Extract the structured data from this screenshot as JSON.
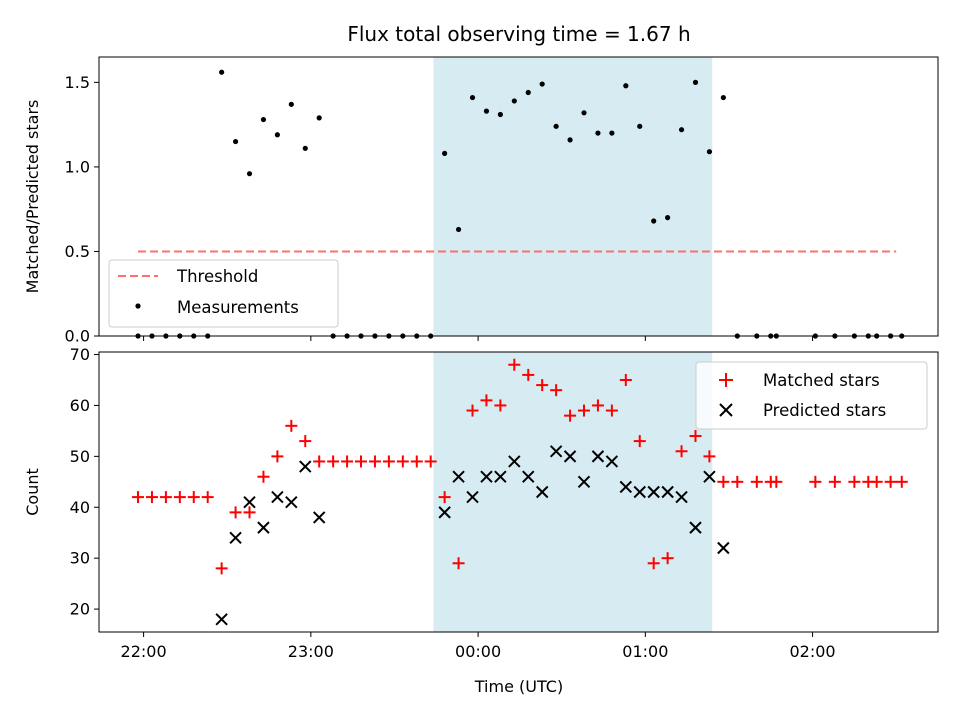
{
  "chart_data": {
    "type": "scatter",
    "title": "Flux total observing time = 1.67 h",
    "xlabel": "Time (UTC)",
    "x_ticks": [
      "22:00",
      "23:00",
      "00:00",
      "01:00",
      "02:00"
    ],
    "x_tick_values": [
      0,
      60,
      120,
      180,
      240
    ],
    "x_unit": "minutes after 22:00 UTC",
    "xlim": [
      -16,
      285
    ],
    "highlight_span": [
      104,
      204
    ],
    "highlight_color": "#add8e6",
    "top": {
      "ylabel": "Matched/Predicted stars",
      "ylim": [
        0,
        1.65
      ],
      "y_ticks": [
        "0.0",
        "0.5",
        "1.0",
        "1.5"
      ],
      "y_tick_values": [
        0,
        0.5,
        1.0,
        1.5
      ],
      "legend": {
        "placement": "lower-left",
        "entries": [
          "Threshold",
          "Measurements"
        ]
      },
      "threshold": {
        "name": "Threshold",
        "value": 0.5,
        "x_range": [
          -2,
          270
        ],
        "color": "#ff6f6f"
      },
      "measurements": {
        "name": "Measurements",
        "color": "#000000",
        "points": [
          [
            -2,
            0
          ],
          [
            3,
            0
          ],
          [
            8,
            0
          ],
          [
            13,
            0
          ],
          [
            18,
            0
          ],
          [
            23,
            0
          ],
          [
            28,
            1.56
          ],
          [
            33,
            1.15
          ],
          [
            38,
            0.96
          ],
          [
            43,
            1.28
          ],
          [
            48,
            1.19
          ],
          [
            53,
            1.37
          ],
          [
            58,
            1.11
          ],
          [
            63,
            1.29
          ],
          [
            68,
            0
          ],
          [
            73,
            0
          ],
          [
            78,
            0
          ],
          [
            83,
            0
          ],
          [
            88,
            0
          ],
          [
            93,
            0
          ],
          [
            98,
            0
          ],
          [
            103,
            0
          ],
          [
            108,
            1.08
          ],
          [
            113,
            0.63
          ],
          [
            118,
            1.41
          ],
          [
            123,
            1.33
          ],
          [
            128,
            1.31
          ],
          [
            133,
            1.39
          ],
          [
            138,
            1.44
          ],
          [
            143,
            1.49
          ],
          [
            148,
            1.24
          ],
          [
            153,
            1.16
          ],
          [
            158,
            1.32
          ],
          [
            163,
            1.2
          ],
          [
            168,
            1.2
          ],
          [
            173,
            1.48
          ],
          [
            178,
            1.24
          ],
          [
            183,
            0.68
          ],
          [
            188,
            0.7
          ],
          [
            193,
            1.22
          ],
          [
            198,
            1.5
          ],
          [
            203,
            1.09
          ],
          [
            208,
            1.41
          ],
          [
            213,
            0
          ],
          [
            220,
            0
          ],
          [
            225,
            0
          ],
          [
            227,
            0
          ],
          [
            241,
            0
          ],
          [
            248,
            0
          ],
          [
            255,
            0
          ],
          [
            260,
            0
          ],
          [
            263,
            0
          ],
          [
            268,
            0
          ],
          [
            272,
            0
          ]
        ]
      }
    },
    "bottom": {
      "ylabel": "Count",
      "ylim": [
        15.5,
        70.5
      ],
      "y_ticks": [
        "20",
        "30",
        "40",
        "50",
        "60",
        "70"
      ],
      "y_tick_values": [
        20,
        30,
        40,
        50,
        60,
        70
      ],
      "legend": {
        "placement": "upper-right",
        "entries": [
          "Matched stars",
          "Predicted stars"
        ]
      },
      "matched": {
        "name": "Matched stars",
        "color": "#ff0000",
        "points": [
          [
            -2,
            42
          ],
          [
            3,
            42
          ],
          [
            8,
            42
          ],
          [
            13,
            42
          ],
          [
            18,
            42
          ],
          [
            23,
            42
          ],
          [
            28,
            28
          ],
          [
            33,
            39
          ],
          [
            38,
            39
          ],
          [
            43,
            46
          ],
          [
            48,
            50
          ],
          [
            53,
            56
          ],
          [
            58,
            53
          ],
          [
            63,
            49
          ],
          [
            68,
            49
          ],
          [
            73,
            49
          ],
          [
            78,
            49
          ],
          [
            83,
            49
          ],
          [
            88,
            49
          ],
          [
            93,
            49
          ],
          [
            98,
            49
          ],
          [
            103,
            49
          ],
          [
            108,
            42
          ],
          [
            113,
            29
          ],
          [
            118,
            59
          ],
          [
            123,
            61
          ],
          [
            128,
            60
          ],
          [
            133,
            68
          ],
          [
            138,
            66
          ],
          [
            143,
            64
          ],
          [
            148,
            63
          ],
          [
            153,
            58
          ],
          [
            158,
            59
          ],
          [
            163,
            60
          ],
          [
            168,
            59
          ],
          [
            173,
            65
          ],
          [
            178,
            53
          ],
          [
            183,
            29
          ],
          [
            188,
            30
          ],
          [
            193,
            51
          ],
          [
            198,
            54
          ],
          [
            203,
            50
          ],
          [
            208,
            45
          ],
          [
            213,
            45
          ],
          [
            220,
            45
          ],
          [
            225,
            45
          ],
          [
            227,
            45
          ],
          [
            241,
            45
          ],
          [
            248,
            45
          ],
          [
            255,
            45
          ],
          [
            260,
            45
          ],
          [
            263,
            45
          ],
          [
            268,
            45
          ],
          [
            272,
            45
          ]
        ]
      },
      "predicted": {
        "name": "Predicted stars",
        "color": "#000000",
        "points": [
          [
            28,
            18
          ],
          [
            33,
            34
          ],
          [
            38,
            41
          ],
          [
            43,
            36
          ],
          [
            48,
            42
          ],
          [
            53,
            41
          ],
          [
            58,
            48
          ],
          [
            63,
            38
          ],
          [
            108,
            39
          ],
          [
            113,
            46
          ],
          [
            118,
            42
          ],
          [
            123,
            46
          ],
          [
            128,
            46
          ],
          [
            133,
            49
          ],
          [
            138,
            46
          ],
          [
            143,
            43
          ],
          [
            148,
            51
          ],
          [
            153,
            50
          ],
          [
            158,
            45
          ],
          [
            163,
            50
          ],
          [
            168,
            49
          ],
          [
            173,
            44
          ],
          [
            178,
            43
          ],
          [
            183,
            43
          ],
          [
            188,
            43
          ],
          [
            193,
            42
          ],
          [
            198,
            36
          ],
          [
            203,
            46
          ],
          [
            208,
            32
          ]
        ]
      }
    }
  }
}
